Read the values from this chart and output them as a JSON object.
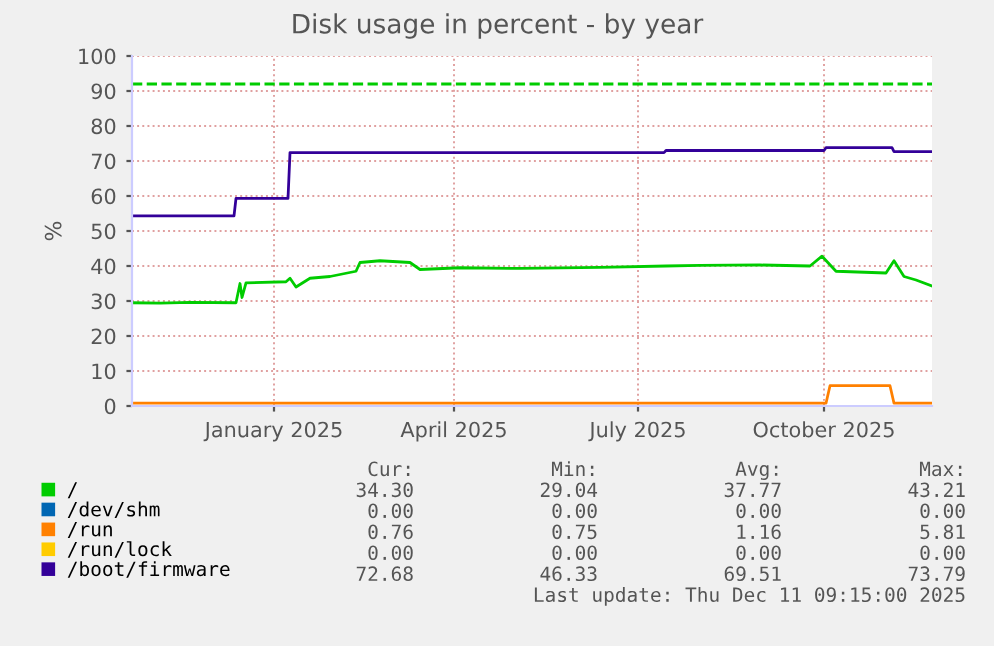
{
  "chart_data": {
    "type": "line",
    "title": "Disk usage in percent - by year",
    "ylabel": "%",
    "xlim": [
      "2024-11-06",
      "2025-12-11"
    ],
    "xticks": [
      {
        "value": "2025-01-16",
        "label": "January 2025"
      },
      {
        "value": "2025-04-16",
        "label": "April 2025"
      },
      {
        "value": "2025-07-17",
        "label": "July 2025"
      },
      {
        "value": "2025-10-18",
        "label": "October 2025"
      }
    ],
    "ylim": [
      0,
      100
    ],
    "yticks": [
      0,
      10,
      20,
      30,
      40,
      50,
      60,
      70,
      80,
      90,
      100
    ],
    "grid": true,
    "legend": "bottom left",
    "marker": "none",
    "line_style": "solid",
    "ref_lines": [
      {
        "axis": "y",
        "value": 92,
        "color": "#00cc00",
        "line_style": "dashed"
      }
    ],
    "series": [
      {
        "name": "/",
        "color": "#00cc00",
        "x": [
          "2024-11-06",
          "2024-11-20",
          "2024-12-05",
          "2024-12-28",
          "2024-12-30",
          "2024-12-31",
          "2025-01-02",
          "2025-01-22",
          "2025-01-24",
          "2025-01-27",
          "2025-02-03",
          "2025-02-13",
          "2025-02-26",
          "2025-02-28",
          "2025-03-10",
          "2025-03-25",
          "2025-03-30",
          "2025-04-19",
          "2025-05-19",
          "2025-06-28",
          "2025-07-31",
          "2025-08-17",
          "2025-09-16",
          "2025-10-11",
          "2025-10-17",
          "2025-10-24",
          "2025-11-18",
          "2025-11-22",
          "2025-11-27",
          "2025-12-03",
          "2025-12-11"
        ],
        "values": [
          29.5,
          29.4,
          29.6,
          29.5,
          35,
          31,
          35.2,
          35.5,
          36.5,
          34,
          36.5,
          37,
          38.5,
          41,
          41.5,
          41,
          39,
          39.5,
          39.3,
          39.6,
          40,
          40.2,
          40.3,
          40,
          42.8,
          38.5,
          38,
          41.5,
          37,
          36,
          34.3
        ]
      },
      {
        "name": "/dev/shm",
        "color": "#0066b3"
      },
      {
        "name": "/run",
        "color": "#ff8000",
        "x": [
          "2024-11-06",
          "2025-10-19",
          "2025-10-21",
          "2025-11-20",
          "2025-11-22",
          "2025-12-11"
        ],
        "values": [
          0.8,
          0.8,
          5.8,
          5.8,
          0.8,
          0.8
        ]
      },
      {
        "name": "/run/lock",
        "color": "#ffcc00"
      },
      {
        "name": "/boot/firmware",
        "color": "#330099",
        "x": [
          "2024-11-06",
          "2024-12-27",
          "2024-12-28",
          "2025-01-23",
          "2025-01-24",
          "2025-07-30",
          "2025-07-31",
          "2025-10-18",
          "2025-10-19",
          "2025-11-21",
          "2025-11-22",
          "2025-12-11"
        ],
        "values": [
          54.3,
          54.3,
          59.3,
          59.3,
          72.4,
          72.4,
          73,
          73,
          73.8,
          73.8,
          72.7,
          72.7
        ]
      }
    ],
    "annotations": [
      "Cur:",
      "Min:",
      "Avg:",
      "Max:",
      "34.30",
      "29.04",
      "37.77",
      "43.21",
      "0.00",
      "0.00",
      "0.00",
      "0.00",
      "0.76",
      "0.75",
      "1.16",
      "5.81",
      "0.00",
      "0.00",
      "0.00",
      "0.00",
      "72.68",
      "46.33",
      "69.51",
      "73.79",
      "Last update: Thu Dec 11 09:15:00 2025"
    ]
  }
}
